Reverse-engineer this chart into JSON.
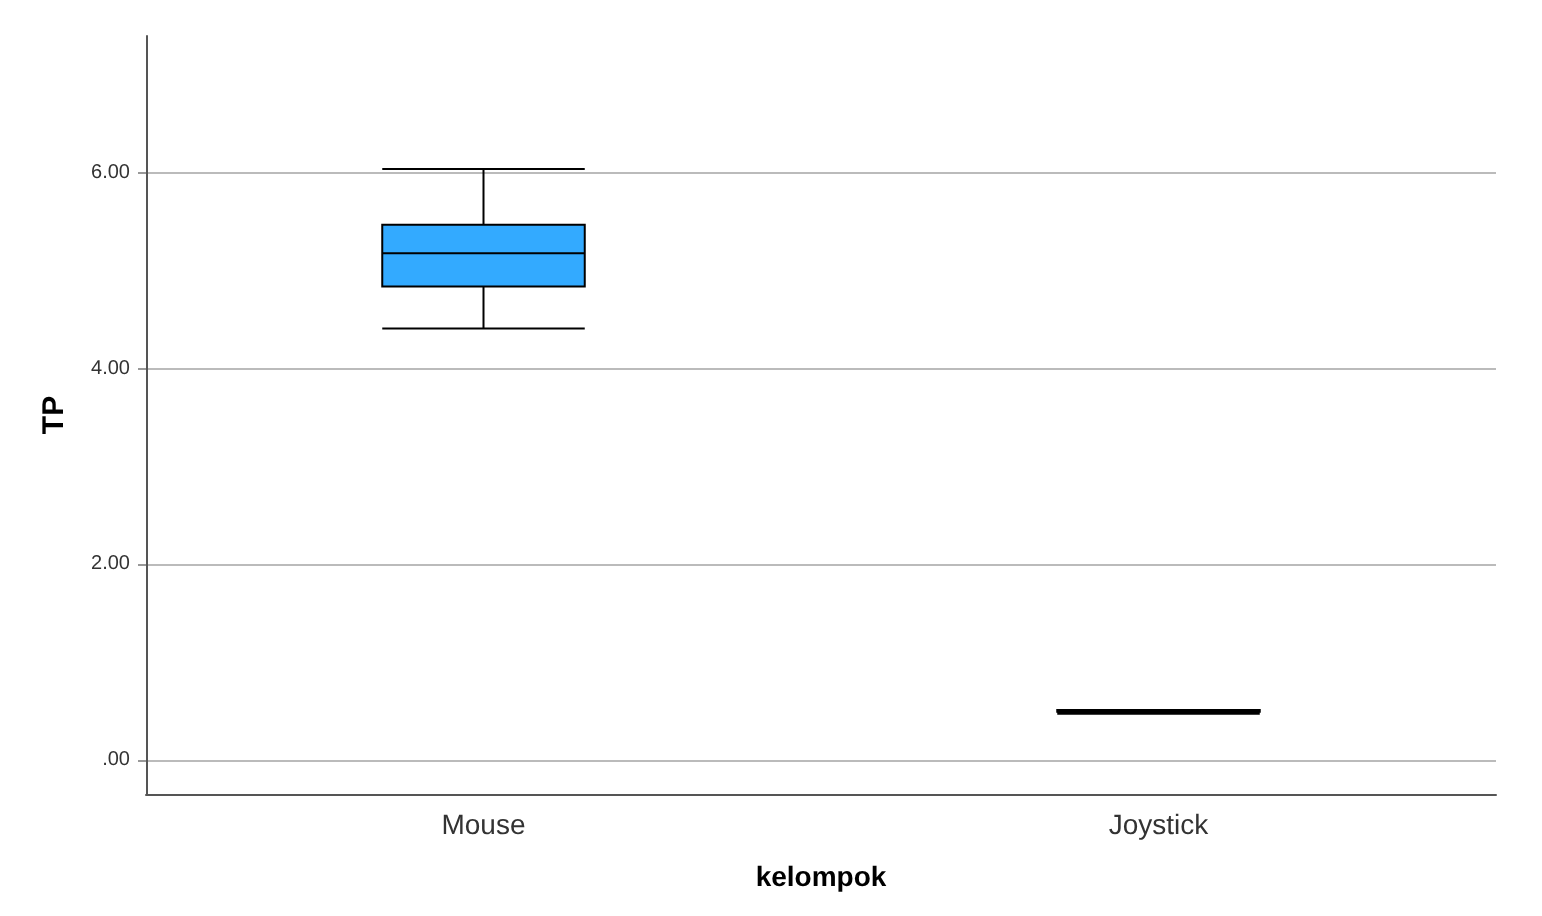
{
  "chart_data": {
    "type": "box",
    "xlabel": "kelompok",
    "ylabel": "TP",
    "categories": [
      "Mouse",
      "Joystick"
    ],
    "series": [
      {
        "color": "#33aaff",
        "boxes": [
          {
            "low": 4.41,
            "q1": 4.84,
            "median": 5.18,
            "q3": 5.47,
            "high": 6.04
          },
          {
            "low": 0.47,
            "q1": 0.49,
            "median": 0.5,
            "q3": 0.51,
            "high": 0.51
          }
        ]
      }
    ],
    "ylim": [
      -0.35,
      7.4
    ],
    "yticks": [
      {
        "value": 0,
        "label": ".00"
      },
      {
        "value": 2,
        "label": "2.00"
      },
      {
        "value": 4,
        "label": "4.00"
      },
      {
        "value": 6,
        "label": "6.00"
      }
    ],
    "grid": "y"
  }
}
